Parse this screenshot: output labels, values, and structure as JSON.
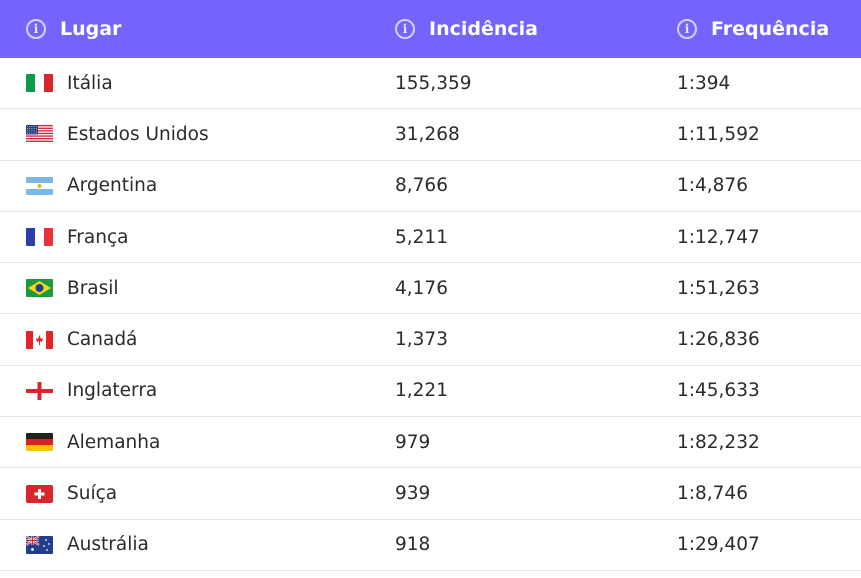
{
  "headers": {
    "place": "Lugar",
    "incidence": "Incidência",
    "frequency": "Frequência",
    "icon": "info-icon"
  },
  "rows": [
    {
      "country": "Itália",
      "flag": "italy",
      "incidence": "155,359",
      "frequency": "1:394"
    },
    {
      "country": "Estados Unidos",
      "flag": "usa",
      "incidence": "31,268",
      "frequency": "1:11,592"
    },
    {
      "country": "Argentina",
      "flag": "argentina",
      "incidence": "8,766",
      "frequency": "1:4,876"
    },
    {
      "country": "França",
      "flag": "france",
      "incidence": "5,211",
      "frequency": "1:12,747"
    },
    {
      "country": "Brasil",
      "flag": "brazil",
      "incidence": "4,176",
      "frequency": "1:51,263"
    },
    {
      "country": "Canadá",
      "flag": "canada",
      "incidence": "1,373",
      "frequency": "1:26,836"
    },
    {
      "country": "Inglaterra",
      "flag": "england",
      "incidence": "1,221",
      "frequency": "1:45,633"
    },
    {
      "country": "Alemanha",
      "flag": "germany",
      "incidence": "979",
      "frequency": "1:82,232"
    },
    {
      "country": "Suíça",
      "flag": "switzerland",
      "incidence": "939",
      "frequency": "1:8,746"
    },
    {
      "country": "Austrália",
      "flag": "australia",
      "incidence": "918",
      "frequency": "1:29,407"
    }
  ],
  "colors": {
    "header_bg": "#7365fb",
    "header_text": "#ffffff",
    "row_text": "#2b2b2b",
    "divider": "#e6e6ee"
  }
}
